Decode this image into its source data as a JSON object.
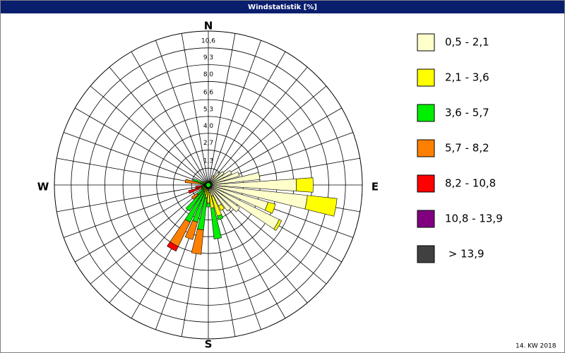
{
  "chart_data": {
    "type": "windrose",
    "title": "Windstatistik [%]",
    "footer": "14. KW 2018",
    "direction_labels": [
      "N",
      "E",
      "S",
      "W"
    ],
    "directions": [
      0,
      10,
      20,
      30,
      40,
      50,
      60,
      70,
      80,
      90,
      100,
      110,
      120,
      130,
      140,
      150,
      160,
      170,
      180,
      190,
      200,
      210,
      220,
      230,
      240,
      250,
      260,
      270,
      280,
      290,
      300,
      310,
      320,
      330,
      340,
      350
    ],
    "rlim": [
      0,
      11.9
    ],
    "rticks": [
      {
        "value": 1.3,
        "label": "1,3"
      },
      {
        "value": 2.7,
        "label": "2,7"
      },
      {
        "value": 4.0,
        "label": "4,0"
      },
      {
        "value": 5.3,
        "label": "5,3"
      },
      {
        "value": 6.6,
        "label": "6,6"
      },
      {
        "value": 8.0,
        "label": "8,0"
      },
      {
        "value": 9.3,
        "label": "9,3"
      },
      {
        "value": 10.6,
        "label": "10,6"
      }
    ],
    "series": [
      {
        "name": "0,5 - 2,1",
        "color": "#ffffcc",
        "values": [
          0.2,
          0.2,
          0.3,
          0.8,
          1.2,
          1.5,
          2.0,
          2.5,
          4.0,
          6.8,
          7.7,
          4.8,
          6.1,
          3.0,
          2.5,
          1.8,
          0.9,
          0.6,
          0.4,
          0.4,
          0.3,
          0.2,
          0.2,
          0.2,
          0.1,
          0.1,
          0.1,
          0.1,
          0.1,
          0.1,
          0.2,
          0.2,
          0.2,
          0.2,
          0.2,
          0.2
        ]
      },
      {
        "name": "2,1 - 3,6",
        "color": "#ffff00",
        "values": [
          0,
          0,
          0,
          0,
          0,
          0,
          0,
          0,
          0,
          1.3,
          2.3,
          0.6,
          0.2,
          0,
          0,
          0.4,
          1.6,
          1.2,
          1.0,
          0.6,
          0.5,
          0.4,
          0.3,
          0.3,
          0.2,
          0.1,
          0.1,
          0.1,
          0.2,
          0.2,
          0.3,
          0,
          0,
          0,
          0,
          0
        ]
      },
      {
        "name": "3,6 - 5,7",
        "color": "#00ee00",
        "values": [
          0,
          0,
          0,
          0,
          0,
          0,
          0,
          0,
          0,
          0,
          0,
          0,
          0,
          0,
          0,
          0,
          0.3,
          2.4,
          0.3,
          2.5,
          2.2,
          2.6,
          2.0,
          0.6,
          0.3,
          0.3,
          0.1,
          0.2,
          0.3,
          0.9,
          0,
          0,
          0,
          0,
          0,
          0
        ]
      },
      {
        "name": "5,7 - 8,2",
        "color": "#ff8000",
        "values": [
          0,
          0,
          0,
          0,
          0,
          0,
          0,
          0,
          0,
          0,
          0,
          0,
          0,
          0,
          0,
          0,
          0,
          0,
          0,
          1.9,
          1.4,
          2.1,
          0,
          0.5,
          0,
          0.3,
          0.2,
          0,
          1.2,
          0,
          0,
          0,
          0,
          0,
          0,
          0
        ]
      },
      {
        "name": "8,2 - 10,8",
        "color": "#ff0000",
        "values": [
          0,
          0,
          0,
          0,
          0,
          0,
          0,
          0,
          0,
          0,
          0,
          0,
          0,
          0,
          0,
          0,
          0,
          0,
          0,
          0,
          0,
          0.4,
          0,
          0,
          0,
          0.8,
          0.5,
          0,
          0,
          0,
          0,
          0,
          0,
          0,
          0,
          0
        ]
      },
      {
        "name": "10,8 - 13,9",
        "color": "#800080",
        "values": [
          0,
          0,
          0,
          0,
          0,
          0,
          0,
          0,
          0,
          0,
          0,
          0,
          0,
          0,
          0,
          0,
          0,
          0,
          0,
          0,
          0,
          0,
          0,
          0,
          0,
          0,
          0,
          0,
          0,
          0,
          0,
          0,
          0,
          0,
          0,
          0
        ]
      },
      {
        "name": " > 13,9",
        "color": "#404040",
        "values": [
          0,
          0,
          0,
          0,
          0,
          0,
          0,
          0,
          0,
          0,
          0,
          0,
          0,
          0,
          0,
          0,
          0,
          0,
          0,
          0,
          0,
          0,
          0,
          0,
          0,
          0,
          0,
          0,
          0,
          0,
          0,
          0,
          0,
          0,
          0,
          0
        ]
      }
    ]
  }
}
